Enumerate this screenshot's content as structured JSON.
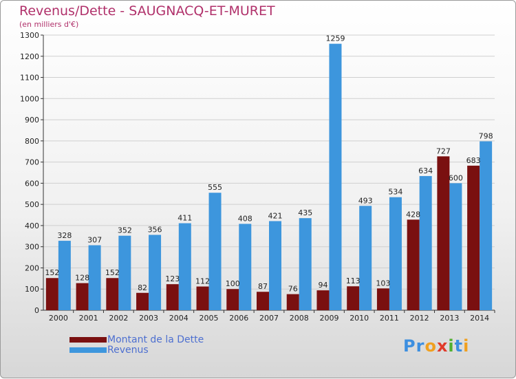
{
  "colors": {
    "debt": "#7a1010",
    "revenue": "#3d96dd",
    "title": "#b0306a",
    "legend_text": "#4d6fd0"
  },
  "logo": {
    "text": "Proxiti",
    "letters": [
      "P",
      "r",
      "o",
      "x",
      "i",
      "t",
      "i"
    ],
    "colors": [
      "#3d8fe0",
      "#3d8fe0",
      "#f0a020",
      "#e03a2a",
      "#50b030",
      "#3d8fe0",
      "#f0a020"
    ]
  },
  "chart_data": {
    "type": "bar",
    "title": "Revenus/Dette - SAUGNACQ-ET-MURET",
    "subtitle": "(en milliers d'€)",
    "xlabel": "",
    "ylabel": "",
    "ylim": [
      0,
      1300
    ],
    "yticks": [
      0,
      100,
      200,
      300,
      400,
      500,
      600,
      700,
      800,
      900,
      1000,
      1100,
      1200,
      1300
    ],
    "grid": true,
    "legend_position": "bottom-left",
    "categories": [
      "2000",
      "2001",
      "2002",
      "2003",
      "2004",
      "2005",
      "2006",
      "2007",
      "2008",
      "2009",
      "2010",
      "2011",
      "2012",
      "2013",
      "2014"
    ],
    "series": [
      {
        "name": "Montant de la Dette",
        "values": [
          152,
          128,
          152,
          82,
          123,
          112,
          100,
          87,
          76,
          94,
          113,
          103,
          428,
          727,
          683
        ]
      },
      {
        "name": "Revenus",
        "values": [
          328,
          307,
          352,
          356,
          411,
          555,
          408,
          421,
          435,
          1259,
          493,
          534,
          634,
          600,
          798
        ]
      }
    ]
  }
}
